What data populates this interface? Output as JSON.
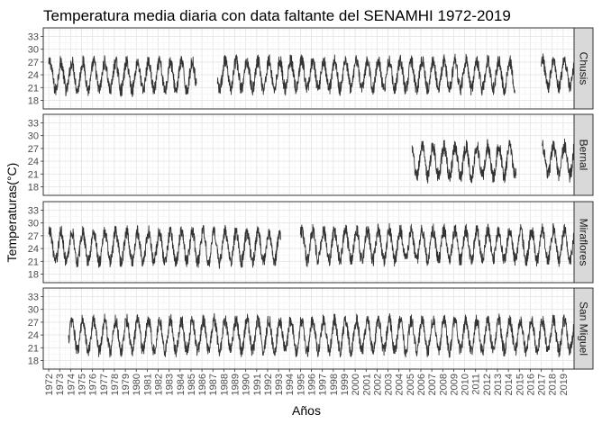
{
  "chart_data": {
    "type": "line",
    "title": "Temperatura media diaria con data faltante del SENAMHI 1972-2019",
    "xlabel": "Años",
    "ylabel": "Temperaturas(°C)",
    "x_ticks": [
      "1972",
      "1973",
      "1974",
      "1975",
      "1976",
      "1977",
      "1978",
      "1979",
      "1980",
      "1981",
      "1982",
      "1983",
      "1984",
      "1985",
      "1986",
      "1987",
      "1988",
      "1989",
      "1990",
      "1991",
      "1992",
      "1993",
      "1994",
      "1995",
      "1996",
      "1997",
      "1998",
      "1999",
      "2000",
      "2001",
      "2002",
      "2003",
      "2004",
      "2005",
      "2006",
      "2007",
      "2008",
      "2009",
      "2010",
      "2011",
      "2012",
      "2013",
      "2014",
      "2015",
      "2016",
      "2017",
      "2018",
      "2019"
    ],
    "y_ticks": [
      18,
      21,
      24,
      27,
      30,
      33
    ],
    "xlim": [
      1971.5,
      2020.0
    ],
    "ylim": [
      16.0,
      35.0
    ],
    "line_color": "#333333",
    "panels": [
      {
        "name": "Chusis",
        "segments": [
          {
            "start": 1972.0,
            "end": 1985.5,
            "mean": 23.7,
            "amp": 3.3,
            "noise": 1.6
          },
          {
            "start": 1987.4,
            "end": 2014.6,
            "mean": 24.0,
            "amp": 3.3,
            "noise": 1.6
          },
          {
            "start": 2017.0,
            "end": 2020.0,
            "mean": 24.3,
            "amp": 3.3,
            "noise": 1.6
          }
        ]
      },
      {
        "name": "Bernal",
        "segments": [
          {
            "start": 2005.2,
            "end": 2014.7,
            "mean": 24.0,
            "amp": 3.5,
            "noise": 1.7
          },
          {
            "start": 2017.1,
            "end": 2020.0,
            "mean": 24.2,
            "amp": 3.5,
            "noise": 1.7
          }
        ]
      },
      {
        "name": "Miraflores",
        "segments": [
          {
            "start": 1972.0,
            "end": 1993.2,
            "mean": 24.4,
            "amp": 3.5,
            "noise": 1.6
          },
          {
            "start": 1995.0,
            "end": 2020.0,
            "mean": 24.8,
            "amp": 3.5,
            "noise": 1.6
          }
        ]
      },
      {
        "name": "San Miguel",
        "segments": [
          {
            "start": 1973.8,
            "end": 2020.0,
            "mean": 23.9,
            "amp": 3.6,
            "noise": 1.6
          }
        ]
      }
    ]
  }
}
